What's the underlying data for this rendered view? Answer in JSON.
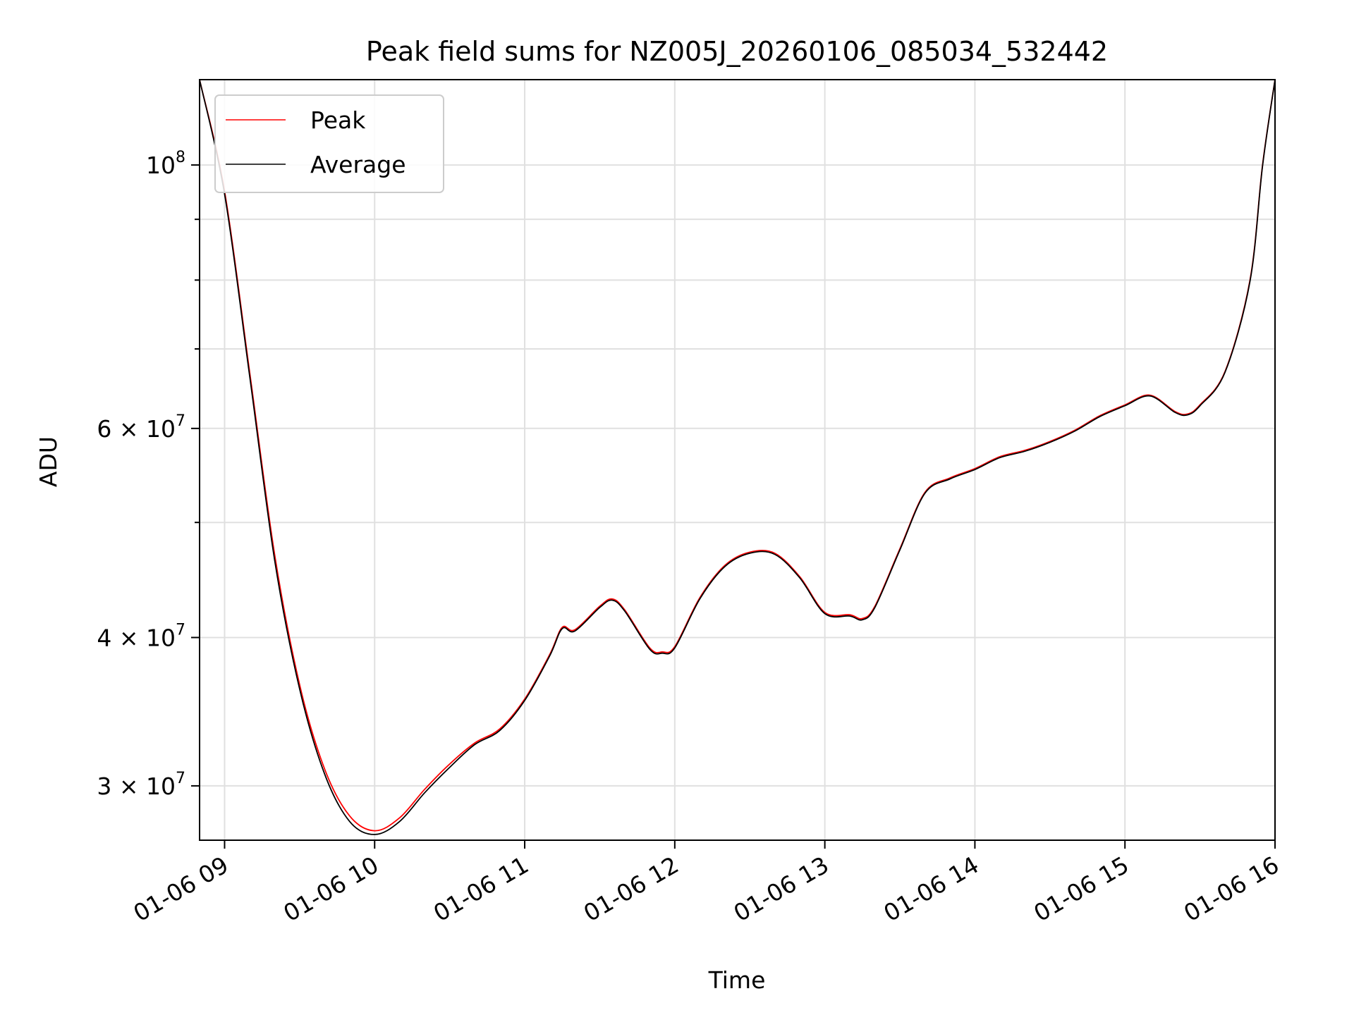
{
  "chart_data": {
    "type": "line",
    "title": "Peak field sums for NZ005J_20260106_085034_532442",
    "xlabel": "Time",
    "ylabel": "ADU",
    "yscale": "log",
    "xlim": [
      "01-06 08:50",
      "01-06 16:00"
    ],
    "ylim": [
      27000000,
      118000000
    ],
    "grid": true,
    "legend_position": "top-left",
    "x_ticks": [
      "01-06 09",
      "01-06 10",
      "01-06 11",
      "01-06 12",
      "01-06 13",
      "01-06 14",
      "01-06 15",
      "01-06 16"
    ],
    "y_ticks": [
      {
        "value": 30000000,
        "label": "3 × 10⁷",
        "mantissa": "3 × 10",
        "exp": "7"
      },
      {
        "value": 40000000,
        "label": "4 × 10⁷",
        "mantissa": "4 × 10",
        "exp": "7"
      },
      {
        "value": 60000000,
        "label": "6 × 10⁷",
        "mantissa": "6 × 10",
        "exp": "7"
      },
      {
        "value": 100000000,
        "label": "10⁸",
        "mantissa": "10",
        "exp": "8"
      }
    ],
    "series": [
      {
        "name": "Peak",
        "color": "#ff0000",
        "x": [
          "01-06 08:50",
          "01-06 09:00",
          "01-06 09:10",
          "01-06 09:20",
          "01-06 09:30",
          "01-06 09:40",
          "01-06 09:50",
          "01-06 10:00",
          "01-06 10:10",
          "01-06 10:20",
          "01-06 10:30",
          "01-06 10:40",
          "01-06 10:50",
          "01-06 11:00",
          "01-06 11:10",
          "01-06 11:15",
          "01-06 11:20",
          "01-06 11:30",
          "01-06 11:35",
          "01-06 11:40",
          "01-06 11:50",
          "01-06 11:55",
          "01-06 12:00",
          "01-06 12:10",
          "01-06 12:20",
          "01-06 12:30",
          "01-06 12:40",
          "01-06 12:50",
          "01-06 13:00",
          "01-06 13:10",
          "01-06 13:15",
          "01-06 13:20",
          "01-06 13:30",
          "01-06 13:40",
          "01-06 13:50",
          "01-06 14:00",
          "01-06 14:10",
          "01-06 14:20",
          "01-06 14:30",
          "01-06 14:40",
          "01-06 14:50",
          "01-06 15:00",
          "01-06 15:10",
          "01-06 15:20",
          "01-06 15:25",
          "01-06 15:30",
          "01-06 15:40",
          "01-06 15:50",
          "01-06 15:55",
          "01-06 16:00"
        ],
        "values": [
          118000000,
          95000000,
          67000000,
          47000000,
          36500000,
          31000000,
          28300000,
          27500000,
          28200000,
          29800000,
          31300000,
          32600000,
          33500000,
          35500000,
          38700000,
          40800000,
          40600000,
          42500000,
          43100000,
          42200000,
          39200000,
          38900000,
          39300000,
          43200000,
          46000000,
          47200000,
          47100000,
          45000000,
          42000000,
          41800000,
          41500000,
          42500000,
          47500000,
          53000000,
          54500000,
          55500000,
          56800000,
          57500000,
          58500000,
          59800000,
          61500000,
          62800000,
          64000000,
          62000000,
          61700000,
          62800000,
          67000000,
          80000000,
          100000000,
          118000000
        ]
      },
      {
        "name": "Average",
        "color": "#000000",
        "x": [
          "01-06 08:50",
          "01-06 09:00",
          "01-06 09:10",
          "01-06 09:20",
          "01-06 09:30",
          "01-06 09:40",
          "01-06 09:50",
          "01-06 10:00",
          "01-06 10:10",
          "01-06 10:20",
          "01-06 10:30",
          "01-06 10:40",
          "01-06 10:50",
          "01-06 11:00",
          "01-06 11:10",
          "01-06 11:15",
          "01-06 11:20",
          "01-06 11:30",
          "01-06 11:35",
          "01-06 11:40",
          "01-06 11:50",
          "01-06 11:55",
          "01-06 12:00",
          "01-06 12:10",
          "01-06 12:20",
          "01-06 12:30",
          "01-06 12:40",
          "01-06 12:50",
          "01-06 13:00",
          "01-06 13:10",
          "01-06 13:15",
          "01-06 13:20",
          "01-06 13:30",
          "01-06 13:40",
          "01-06 13:50",
          "01-06 14:00",
          "01-06 14:10",
          "01-06 14:20",
          "01-06 14:30",
          "01-06 14:40",
          "01-06 14:50",
          "01-06 15:00",
          "01-06 15:10",
          "01-06 15:20",
          "01-06 15:25",
          "01-06 15:30",
          "01-06 15:40",
          "01-06 15:50",
          "01-06 15:55",
          "01-06 16:00"
        ],
        "values": [
          118000000,
          94500000,
          66500000,
          46500000,
          36200000,
          30700000,
          28000000,
          27300000,
          28000000,
          29600000,
          31100000,
          32500000,
          33400000,
          35400000,
          38600000,
          40700000,
          40500000,
          42400000,
          43000000,
          42100000,
          39100000,
          38800000,
          39200000,
          43100000,
          45900000,
          47100000,
          47000000,
          44900000,
          41900000,
          41700000,
          41400000,
          42400000,
          47400000,
          52900000,
          54400000,
          55400000,
          56700000,
          57400000,
          58400000,
          59700000,
          61400000,
          62700000,
          63900000,
          61900000,
          61600000,
          62700000,
          66900000,
          79800000,
          99800000,
          118000000
        ]
      }
    ]
  }
}
